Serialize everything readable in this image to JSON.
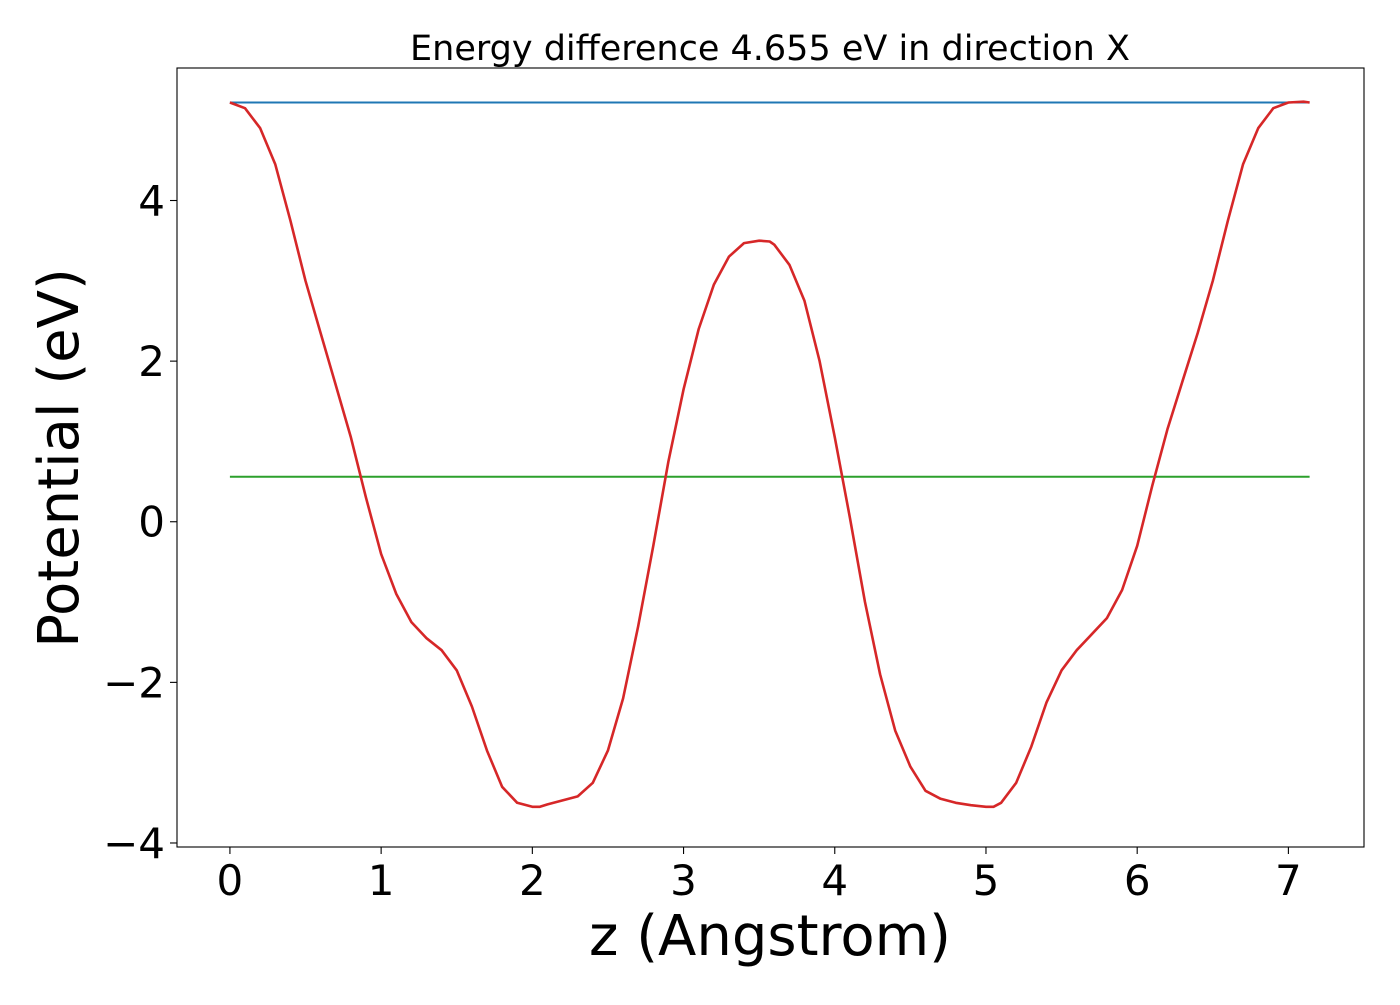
{
  "chart_data": {
    "type": "line",
    "title": "Energy difference 4.655 eV in direction X",
    "xlabel": "z (Angstrom)",
    "ylabel": "Potential (eV)",
    "xlim": [
      -0.35,
      7.5
    ],
    "ylim": [
      -4.05,
      5.65
    ],
    "x_ticks": [
      0,
      1,
      2,
      3,
      4,
      5,
      6,
      7
    ],
    "x_tick_labels": [
      "0",
      "1",
      "2",
      "3",
      "4",
      "5",
      "6",
      "7"
    ],
    "y_ticks": [
      -4,
      -2,
      0,
      2,
      4
    ],
    "y_tick_labels": [
      "−4",
      "−2",
      "0",
      "2",
      "4"
    ],
    "grid": false,
    "series": [
      {
        "color": "#1f77b4",
        "x": [
          0,
          7.14
        ],
        "y": [
          5.22,
          5.22
        ]
      },
      {
        "color": "#2ca02c",
        "x": [
          0,
          7.14
        ],
        "y": [
          0.56,
          0.56
        ]
      },
      {
        "color": "#d62728",
        "x": [
          0,
          0.1,
          0.2,
          0.3,
          0.4,
          0.5,
          0.6,
          0.7,
          0.8,
          0.9,
          1.0,
          1.1,
          1.2,
          1.3,
          1.4,
          1.5,
          1.6,
          1.7,
          1.8,
          1.9,
          2.0,
          2.05,
          2.1,
          2.2,
          2.3,
          2.4,
          2.5,
          2.6,
          2.7,
          2.8,
          2.9,
          3.0,
          3.1,
          3.2,
          3.3,
          3.4,
          3.5,
          3.57,
          3.6,
          3.7,
          3.8,
          3.9,
          4.0,
          4.1,
          4.2,
          4.3,
          4.4,
          4.5,
          4.6,
          4.7,
          4.8,
          4.9,
          5.0,
          5.05,
          5.1,
          5.2,
          5.3,
          5.4,
          5.5,
          5.6,
          5.7,
          5.8,
          5.9,
          6.0,
          6.1,
          6.2,
          6.3,
          6.4,
          6.5,
          6.6,
          6.7,
          6.8,
          6.9,
          7.0,
          7.1,
          7.14
        ],
        "y": [
          5.22,
          5.15,
          4.9,
          4.45,
          3.75,
          3.0,
          2.35,
          1.7,
          1.05,
          0.3,
          -0.4,
          -0.9,
          -1.25,
          -1.45,
          -1.6,
          -1.85,
          -2.3,
          -2.85,
          -3.3,
          -3.5,
          -3.55,
          -3.55,
          -3.52,
          -3.47,
          -3.42,
          -3.25,
          -2.85,
          -2.2,
          -1.3,
          -0.3,
          0.75,
          1.65,
          2.4,
          2.95,
          3.3,
          3.47,
          3.5,
          3.49,
          3.45,
          3.2,
          2.75,
          2.0,
          1.05,
          0.05,
          -1.0,
          -1.9,
          -2.6,
          -3.05,
          -3.35,
          -3.45,
          -3.5,
          -3.53,
          -3.55,
          -3.55,
          -3.5,
          -3.25,
          -2.8,
          -2.25,
          -1.85,
          -1.6,
          -1.4,
          -1.2,
          -0.85,
          -0.3,
          0.45,
          1.15,
          1.75,
          2.35,
          3.0,
          3.75,
          4.45,
          4.9,
          5.15,
          5.22,
          5.23,
          5.22
        ]
      }
    ]
  }
}
